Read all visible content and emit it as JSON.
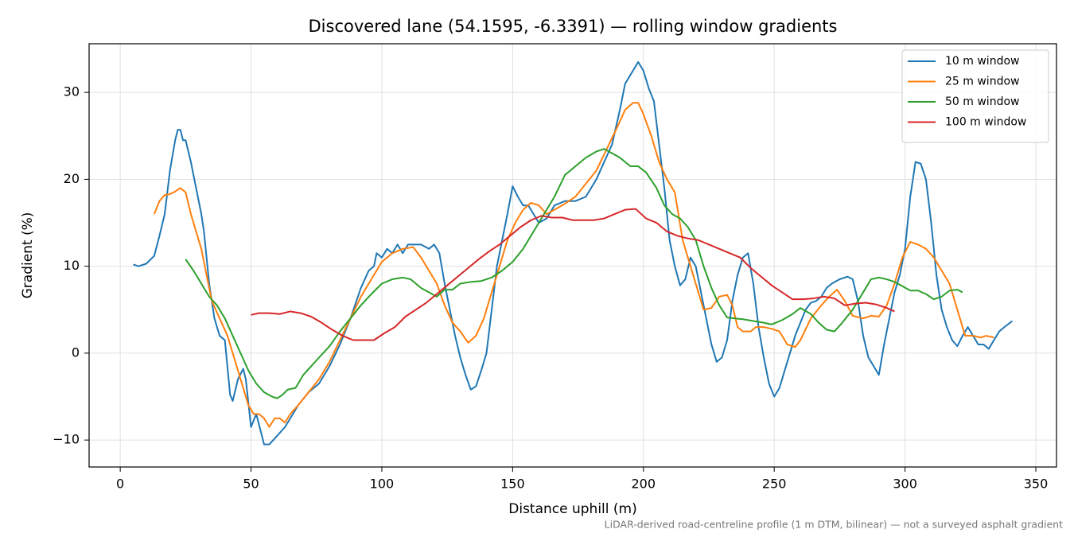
{
  "chart_data": {
    "type": "line",
    "title": "Discovered lane (54.1595, -6.3391) — rolling window gradients",
    "x_label": "Distance uphill (m)",
    "y_label": "Gradient (%)",
    "note": "LiDAR-derived road-centreline profile (1 m DTM, bilinear) — not a surveyed asphalt gradient",
    "xlim": [
      -11.9,
      357.9
    ],
    "ylim": [
      -13.1,
      35.6
    ],
    "xticks": [
      0,
      50,
      100,
      150,
      200,
      250,
      300,
      350
    ],
    "yticks": [
      {
        "value": -10,
        "label": "−10"
      },
      0,
      10,
      20,
      30
    ],
    "grid": true,
    "legend": "upper right",
    "series": [
      {
        "name": "10 m window",
        "color": "#1f77b4",
        "x": [
          5,
          7,
          10,
          13,
          15,
          17,
          19,
          21,
          22,
          23,
          24,
          25,
          27,
          29,
          31,
          32,
          34,
          36,
          38,
          40,
          42,
          43,
          45,
          47,
          48,
          50,
          52,
          55,
          57,
          60,
          63,
          65,
          68,
          72,
          76,
          80,
          84,
          88,
          92,
          95,
          97,
          98,
          100,
          102,
          104,
          106,
          108,
          110,
          112,
          115,
          118,
          120,
          122,
          124,
          126,
          128,
          130,
          132,
          134,
          136,
          138,
          140,
          142,
          144,
          146,
          148,
          150,
          152,
          154,
          156,
          158,
          160,
          163,
          166,
          170,
          174,
          178,
          182,
          185,
          188,
          191,
          193,
          196,
          198,
          200,
          202,
          204,
          206,
          208,
          210,
          212,
          214,
          216,
          218,
          220,
          222,
          224,
          226,
          228,
          230,
          232,
          234,
          236,
          238,
          240,
          242,
          244,
          246,
          248,
          250,
          252,
          254,
          256,
          258,
          260,
          262,
          264,
          266,
          268,
          270,
          272,
          275,
          278,
          280,
          282,
          284,
          286,
          288,
          290,
          292,
          294,
          296,
          298,
          300,
          302,
          304,
          306,
          308,
          310,
          312,
          314,
          316,
          318,
          320,
          322,
          324,
          326,
          328,
          330,
          332,
          334,
          336,
          338,
          341
        ],
        "values": [
          10.2,
          10,
          10.3,
          11.2,
          13.5,
          16,
          21,
          24.5,
          25.7,
          25.7,
          24.5,
          24.5,
          22,
          19,
          16,
          14,
          8,
          4,
          2,
          1.5,
          -4.8,
          -5.5,
          -3,
          -1.8,
          -3,
          -8.5,
          -7,
          -10.5,
          -10.5,
          -9.5,
          -8.5,
          -7.5,
          -6,
          -4.5,
          -3.5,
          -1.5,
          1,
          4,
          7.5,
          9.5,
          10,
          11.5,
          11,
          12,
          11.5,
          12.5,
          11.5,
          12.5,
          12.5,
          12.5,
          12,
          12.5,
          11.5,
          8,
          5,
          2,
          -0.5,
          -2.5,
          -4.2,
          -3.8,
          -2,
          0,
          5,
          10,
          13,
          16,
          19.2,
          18,
          17,
          17,
          16,
          15,
          15.5,
          17,
          17.5,
          17.5,
          18,
          20,
          22,
          24,
          28,
          31,
          32.5,
          33.5,
          32.5,
          30.5,
          29,
          24,
          19,
          13,
          10,
          7.8,
          8.5,
          11,
          10,
          7,
          4,
          1,
          -1,
          -0.5,
          1.5,
          6,
          9,
          11,
          11.5,
          8,
          3,
          -0.5,
          -3.5,
          -5,
          -4,
          -2,
          0,
          2,
          3.5,
          5,
          5.8,
          6,
          6.5,
          7.5,
          8,
          8.5,
          8.8,
          8.5,
          6,
          2,
          -0.5,
          -1.5,
          -2.5,
          1,
          4,
          7,
          9,
          12,
          18,
          22,
          21.8,
          20,
          15,
          9,
          5,
          3,
          1.5,
          0.8,
          2,
          3,
          2,
          1,
          1,
          0.5,
          1.5,
          2.5,
          3,
          3.7
        ]
      },
      {
        "name": "25 m window",
        "color": "#ff7f0e",
        "x": [
          13,
          15,
          17,
          19,
          21,
          23,
          25,
          27,
          29,
          31,
          33,
          35,
          38,
          41,
          43,
          45,
          47,
          49,
          51,
          53,
          55,
          57,
          59,
          61,
          63,
          65,
          68,
          72,
          76,
          80,
          84,
          88,
          92,
          96,
          100,
          104,
          108,
          112,
          115,
          118,
          121,
          124,
          127,
          130,
          133,
          136,
          139,
          142,
          145,
          148,
          151,
          154,
          157,
          160,
          163,
          166,
          170,
          174,
          178,
          182,
          186,
          190,
          193,
          196,
          198,
          200,
          203,
          206,
          209,
          212,
          215,
          218,
          221,
          223,
          226,
          229,
          232,
          234,
          236,
          238,
          241,
          243,
          246,
          249,
          252,
          255,
          258,
          260,
          264,
          268,
          271,
          274,
          277,
          280,
          284,
          287,
          290,
          293,
          296,
          299,
          302,
          305,
          308,
          311,
          314,
          317,
          320,
          323,
          326,
          329,
          331,
          334
        ],
        "values": [
          16,
          17.5,
          18.2,
          18.3,
          18.6,
          19,
          18.5,
          16,
          14,
          12,
          9,
          6,
          4,
          2,
          0,
          -2,
          -4,
          -6,
          -7,
          -7,
          -7.5,
          -8.5,
          -7.5,
          -7.5,
          -8,
          -7,
          -6,
          -4.5,
          -3,
          -1,
          1.5,
          4,
          6.5,
          8.5,
          10.5,
          11.5,
          12,
          12.2,
          11,
          9.5,
          8,
          5.5,
          3.5,
          2.5,
          1.2,
          2,
          4,
          7,
          10,
          13,
          15,
          16.5,
          17.3,
          17,
          16,
          16.5,
          17.2,
          18,
          19.5,
          21,
          23.5,
          26,
          28,
          28.8,
          28.8,
          27.5,
          25,
          22,
          20,
          18.5,
          13,
          10,
          7,
          5,
          5.2,
          6.5,
          6.7,
          5.5,
          3,
          2.5,
          2.5,
          3,
          3,
          2.8,
          2.5,
          1,
          0.7,
          1.5,
          4,
          5.5,
          6.5,
          7.3,
          6,
          4.3,
          4,
          4.3,
          4.2,
          5.5,
          8,
          11,
          12.8,
          12.5,
          12,
          11,
          9.5,
          8,
          5,
          2,
          2,
          1.8,
          2,
          1.8
        ]
      },
      {
        "name": "50 m window",
        "color": "#2ca02c",
        "x": [
          25,
          28,
          31,
          34,
          37,
          40,
          43,
          46,
          49,
          52,
          55,
          58,
          60,
          62,
          64,
          67,
          70,
          73,
          76,
          80,
          84,
          88,
          92,
          96,
          100,
          104,
          108,
          111,
          115,
          118,
          121,
          124,
          127,
          130,
          134,
          138,
          142,
          146,
          150,
          154,
          158,
          162,
          166,
          170,
          174,
          178,
          182,
          185,
          188,
          191,
          195,
          198,
          201,
          205,
          208,
          211,
          214,
          217,
          220,
          223,
          226,
          229,
          232,
          235,
          238,
          242,
          246,
          249,
          253,
          257,
          260,
          264,
          267,
          270,
          273,
          276,
          280,
          284,
          287,
          290,
          293,
          296,
          299,
          302,
          305,
          308,
          311,
          314,
          317,
          320,
          322
        ],
        "values": [
          10.8,
          9.5,
          8,
          6.5,
          5.5,
          4,
          2,
          0,
          -2,
          -3.5,
          -4.5,
          -5,
          -5.2,
          -4.8,
          -4.2,
          -4,
          -2.5,
          -1.5,
          -0.5,
          0.8,
          2.5,
          4,
          5.5,
          6.8,
          8,
          8.5,
          8.7,
          8.5,
          7.5,
          7,
          6.5,
          7.3,
          7.3,
          8,
          8.2,
          8.3,
          8.7,
          9.5,
          10.5,
          12,
          14,
          16,
          18,
          20.5,
          21.5,
          22.5,
          23.2,
          23.5,
          23,
          22.5,
          21.5,
          21.5,
          20.8,
          19,
          17,
          16,
          15.5,
          14.5,
          13,
          10,
          7.5,
          5.5,
          4.1,
          4,
          3.9,
          3.7,
          3.5,
          3.3,
          3.8,
          4.5,
          5.2,
          4.5,
          3.5,
          2.7,
          2.5,
          3.5,
          5,
          7,
          8.5,
          8.7,
          8.5,
          8.2,
          7.7,
          7.2,
          7.2,
          6.8,
          6.2,
          6.5,
          7.2,
          7.3,
          7
        ]
      },
      {
        "name": "100 m window",
        "color": "#d62728",
        "x": [
          50,
          53,
          57,
          61,
          65,
          69,
          73,
          77,
          81,
          85,
          89,
          93,
          97,
          101,
          105,
          109,
          113,
          117,
          121,
          125,
          129,
          133,
          137,
          141,
          145,
          149,
          153,
          157,
          161,
          165,
          169,
          173,
          177,
          181,
          185,
          189,
          193,
          197,
          201,
          205,
          209,
          213,
          217,
          221,
          225,
          229,
          233,
          237,
          241,
          245,
          249,
          253,
          257,
          261,
          265,
          269,
          273,
          277,
          281,
          285,
          289,
          293,
          296
        ],
        "values": [
          4.4,
          4.6,
          4.6,
          4.5,
          4.8,
          4.6,
          4.2,
          3.5,
          2.7,
          2,
          1.5,
          1.5,
          1.5,
          2.3,
          3,
          4.2,
          5,
          5.8,
          6.8,
          7.8,
          8.8,
          9.8,
          10.8,
          11.7,
          12.5,
          13.5,
          14.5,
          15.3,
          15.8,
          15.6,
          15.6,
          15.3,
          15.3,
          15.3,
          15.5,
          16,
          16.5,
          16.6,
          15.5,
          15,
          14,
          13.5,
          13.2,
          13,
          12.5,
          12,
          11.5,
          11,
          9.8,
          8.8,
          7.8,
          7,
          6.2,
          6.2,
          6.3,
          6.5,
          6.3,
          5.5,
          5.7,
          5.8,
          5.6,
          5.2,
          4.8
        ]
      }
    ]
  }
}
